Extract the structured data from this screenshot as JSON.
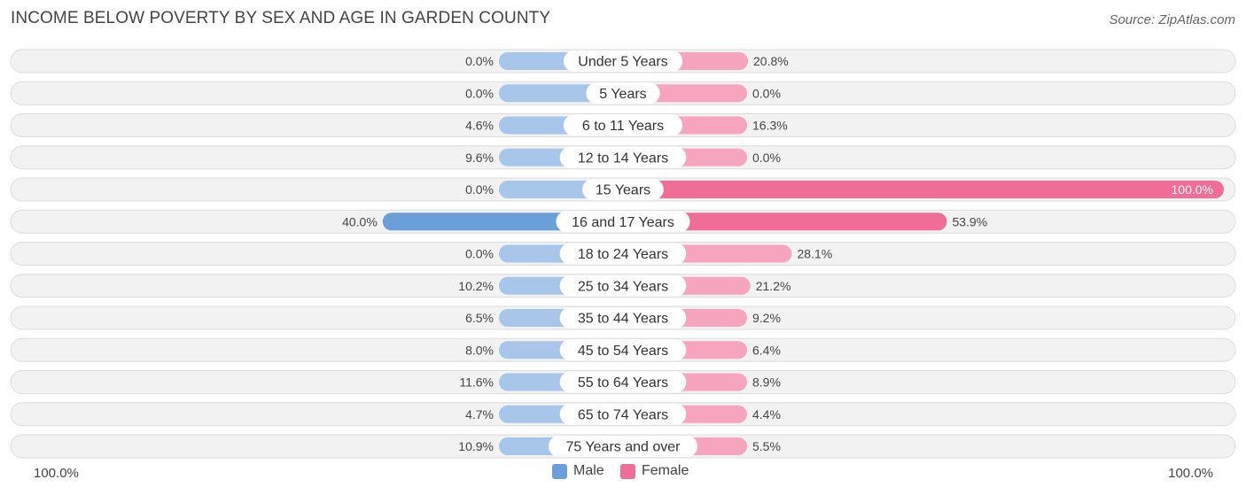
{
  "title": "INCOME BELOW POVERTY BY SEX AND AGE IN GARDEN COUNTY",
  "source": "Source: ZipAtlas.com",
  "chart_data": {
    "type": "bar",
    "orientation": "horizontal-diverging",
    "title": "INCOME BELOW POVERTY BY SEX AND AGE IN GARDEN COUNTY",
    "categories": [
      "Under 5 Years",
      "5 Years",
      "6 to 11 Years",
      "12 to 14 Years",
      "15 Years",
      "16 and 17 Years",
      "18 to 24 Years",
      "25 to 34 Years",
      "35 to 44 Years",
      "45 to 54 Years",
      "55 to 64 Years",
      "65 to 74 Years",
      "75 Years and over"
    ],
    "series": [
      {
        "name": "Male",
        "values": [
          0.0,
          0.0,
          4.6,
          9.6,
          0.0,
          40.0,
          0.0,
          10.2,
          6.5,
          8.0,
          11.6,
          4.7,
          10.9
        ],
        "labels": [
          "0.0%",
          "0.0%",
          "4.6%",
          "9.6%",
          "0.0%",
          "40.0%",
          "0.0%",
          "10.2%",
          "6.5%",
          "8.0%",
          "11.6%",
          "4.7%",
          "10.9%"
        ]
      },
      {
        "name": "Female",
        "values": [
          20.8,
          0.0,
          16.3,
          0.0,
          100.0,
          53.9,
          28.1,
          21.2,
          9.2,
          6.4,
          8.9,
          4.4,
          5.5
        ],
        "labels": [
          "20.8%",
          "0.0%",
          "16.3%",
          "0.0%",
          "100.0%",
          "53.9%",
          "28.1%",
          "21.2%",
          "9.2%",
          "6.4%",
          "8.9%",
          "4.4%",
          "5.5%"
        ]
      }
    ],
    "xlim": [
      0,
      100
    ],
    "axis_left_label": "100.0%",
    "axis_right_label": "100.0%",
    "legend_position": "bottom-center",
    "colors": {
      "male_light": "#a7c6ea",
      "male_strong": "#6b9fd9",
      "female_light": "#f7a4bf",
      "female_strong": "#f06d97",
      "row_bg": "#f2f2f2",
      "row_border": "#dcdcdc"
    }
  },
  "legend": {
    "male_label": "Male",
    "female_label": "Female",
    "male_color": "#6b9fd9",
    "female_color": "#f06d97"
  }
}
